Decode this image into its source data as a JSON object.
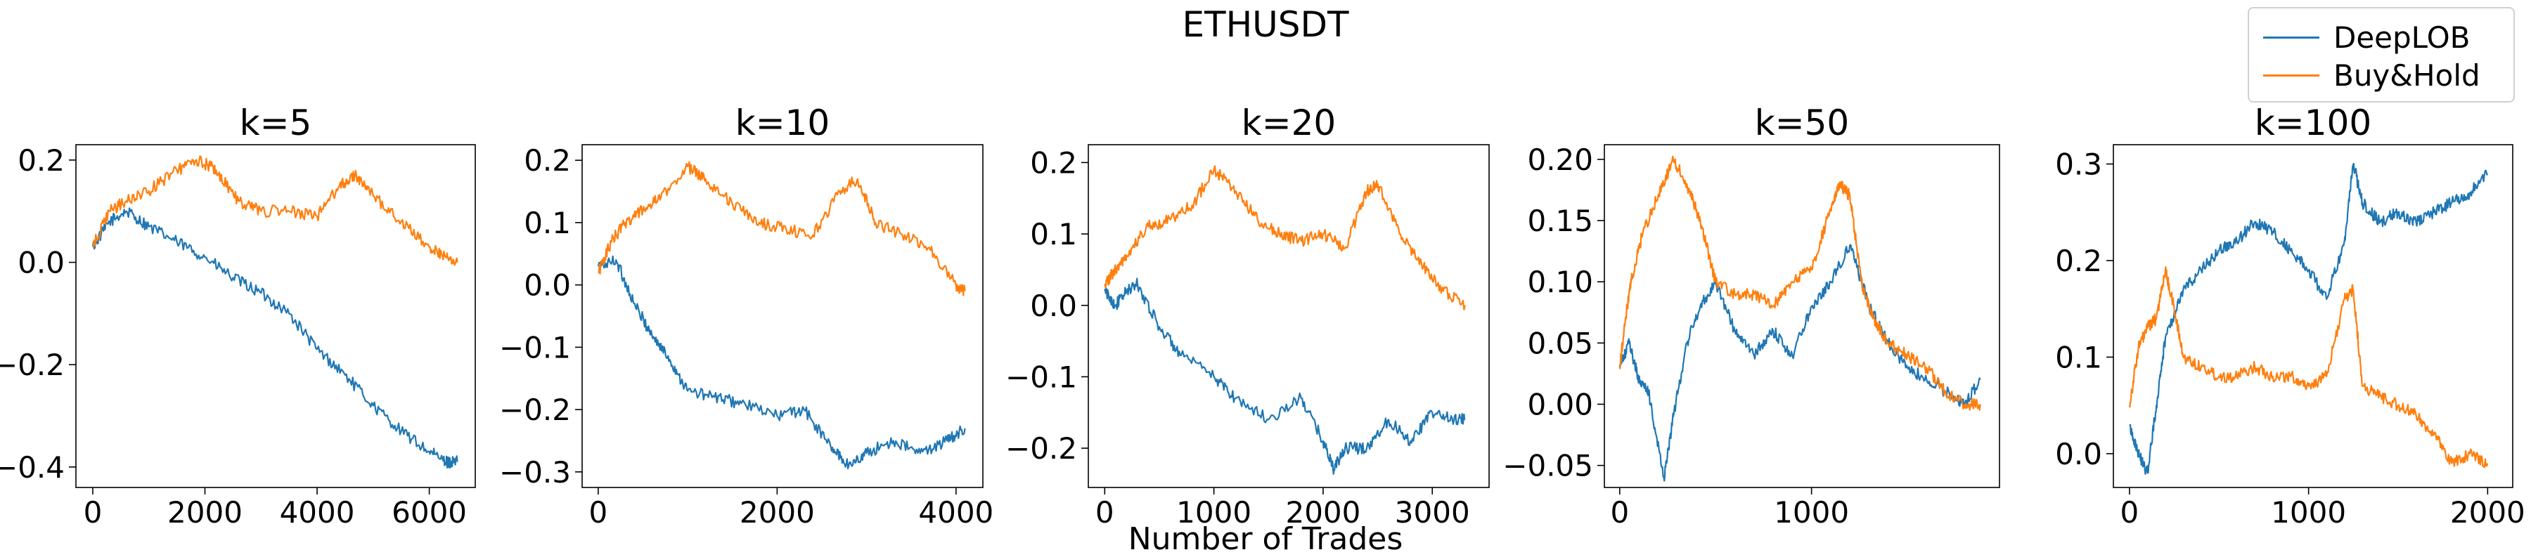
{
  "figure": {
    "title": "ETHUSDT",
    "xlabel": "Number of Trades"
  },
  "legend": [
    {
      "name": "DeepLOB",
      "color": "#1f77b4"
    },
    {
      "name": "Buy&Hold",
      "color": "#ff7f0e"
    }
  ],
  "chart_data": [
    {
      "type": "line",
      "title": "k=5",
      "xlim": [
        -300,
        6820
      ],
      "ylim": [
        -0.44,
        0.23
      ],
      "xticks": [
        0,
        2000,
        4000,
        6000
      ],
      "xtick_labels": [
        "0",
        "2000",
        "4000",
        "6000"
      ],
      "yticks": [
        -0.4,
        -0.2,
        0.0,
        0.2
      ],
      "ytick_labels": [
        "−0.4",
        "−0.2",
        "0.0",
        "0.2"
      ],
      "series": [
        {
          "name": "DeepLOB",
          "color": "#1f77b4",
          "x": [
            0,
            300,
            600,
            1000,
            1500,
            2000,
            2500,
            3000,
            3500,
            4000,
            4500,
            5000,
            5500,
            6000,
            6300,
            6500
          ],
          "y": [
            0.03,
            0.08,
            0.1,
            0.07,
            0.04,
            0.01,
            -0.03,
            -0.06,
            -0.1,
            -0.17,
            -0.22,
            -0.28,
            -0.33,
            -0.37,
            -0.39,
            -0.39
          ]
        },
        {
          "name": "Buy&Hold",
          "color": "#ff7f0e",
          "x": [
            0,
            300,
            600,
            1000,
            1500,
            1900,
            2200,
            2600,
            3000,
            3500,
            4000,
            4400,
            4700,
            5000,
            5500,
            6000,
            6300,
            6500
          ],
          "y": [
            0.03,
            0.1,
            0.12,
            0.14,
            0.18,
            0.2,
            0.18,
            0.12,
            0.1,
            0.1,
            0.09,
            0.15,
            0.17,
            0.13,
            0.08,
            0.03,
            0.01,
            0.0
          ]
        }
      ]
    },
    {
      "type": "line",
      "title": "k=10",
      "xlim": [
        -180,
        4300
      ],
      "ylim": [
        -0.325,
        0.225
      ],
      "xticks": [
        0,
        2000,
        4000
      ],
      "xtick_labels": [
        "0",
        "2000",
        "4000"
      ],
      "yticks": [
        -0.3,
        -0.2,
        -0.1,
        0.0,
        0.1,
        0.2
      ],
      "ytick_labels": [
        "−0.3",
        "−0.2",
        "−0.1",
        "0.0",
        "0.1",
        "0.2"
      ],
      "series": [
        {
          "name": "DeepLOB",
          "color": "#1f77b4",
          "x": [
            0,
            200,
            400,
            600,
            800,
            1000,
            1300,
            1600,
            2000,
            2300,
            2600,
            2800,
            3000,
            3300,
            3600,
            3900,
            4100
          ],
          "y": [
            0.03,
            0.04,
            -0.03,
            -0.08,
            -0.12,
            -0.17,
            -0.18,
            -0.19,
            -0.21,
            -0.2,
            -0.26,
            -0.29,
            -0.27,
            -0.25,
            -0.27,
            -0.25,
            -0.23
          ]
        },
        {
          "name": "Buy&Hold",
          "color": "#ff7f0e",
          "x": [
            0,
            150,
            300,
            500,
            700,
            1000,
            1200,
            1500,
            1800,
            2100,
            2400,
            2700,
            2900,
            3100,
            3400,
            3700,
            4000,
            4100
          ],
          "y": [
            0.02,
            0.07,
            0.1,
            0.12,
            0.14,
            0.19,
            0.17,
            0.13,
            0.1,
            0.09,
            0.08,
            0.15,
            0.17,
            0.1,
            0.08,
            0.06,
            0.0,
            -0.01
          ]
        }
      ]
    },
    {
      "type": "line",
      "title": "k=20",
      "xlim": [
        -150,
        3520
      ],
      "ylim": [
        -0.255,
        0.225
      ],
      "xticks": [
        0,
        1000,
        2000,
        3000
      ],
      "xtick_labels": [
        "0",
        "1000",
        "2000",
        "3000"
      ],
      "yticks": [
        -0.2,
        -0.1,
        0.0,
        0.1,
        0.2
      ],
      "ytick_labels": [
        "−0.2",
        "−0.1",
        "0.0",
        "0.1",
        "0.2"
      ],
      "series": [
        {
          "name": "DeepLOB",
          "color": "#1f77b4",
          "x": [
            0,
            100,
            200,
            300,
            500,
            700,
            1000,
            1200,
            1500,
            1800,
            2000,
            2100,
            2200,
            2400,
            2600,
            2800,
            3000,
            3200,
            3300
          ],
          "y": [
            0.02,
            0.0,
            0.02,
            0.03,
            -0.03,
            -0.07,
            -0.1,
            -0.13,
            -0.16,
            -0.13,
            -0.19,
            -0.23,
            -0.2,
            -0.2,
            -0.16,
            -0.19,
            -0.15,
            -0.16,
            -0.16
          ]
        },
        {
          "name": "Buy&Hold",
          "color": "#ff7f0e",
          "x": [
            0,
            100,
            200,
            400,
            600,
            800,
            1000,
            1200,
            1400,
            1600,
            1800,
            2000,
            2200,
            2400,
            2500,
            2700,
            2900,
            3100,
            3300
          ],
          "y": [
            0.03,
            0.05,
            0.07,
            0.11,
            0.12,
            0.14,
            0.19,
            0.16,
            0.12,
            0.1,
            0.09,
            0.1,
            0.08,
            0.16,
            0.17,
            0.1,
            0.06,
            0.02,
            0.0
          ]
        }
      ]
    },
    {
      "type": "line",
      "title": "k=50",
      "xlim": [
        -80,
        1980
      ],
      "ylim": [
        -0.068,
        0.212
      ],
      "xticks": [
        0,
        1000
      ],
      "xtick_labels": [
        "0",
        "1000"
      ],
      "yticks": [
        -0.05,
        0.0,
        0.05,
        0.1,
        0.15,
        0.2
      ],
      "ytick_labels": [
        "−0.05",
        "0.00",
        "0.05",
        "0.10",
        "0.15",
        "0.20"
      ],
      "series": [
        {
          "name": "DeepLOB",
          "color": "#1f77b4",
          "x": [
            0,
            50,
            100,
            150,
            230,
            280,
            350,
            420,
            500,
            600,
            700,
            800,
            900,
            1000,
            1100,
            1200,
            1300,
            1400,
            1500,
            1600,
            1700,
            1800,
            1880
          ],
          "y": [
            0.03,
            0.05,
            0.02,
            0.01,
            -0.06,
            -0.01,
            0.05,
            0.08,
            0.1,
            0.06,
            0.04,
            0.06,
            0.04,
            0.08,
            0.1,
            0.13,
            0.08,
            0.05,
            0.03,
            0.02,
            0.01,
            0.0,
            0.02
          ]
        },
        {
          "name": "Buy&Hold",
          "color": "#ff7f0e",
          "x": [
            0,
            30,
            60,
            120,
            200,
            280,
            350,
            420,
            500,
            600,
            700,
            800,
            900,
            1000,
            1100,
            1150,
            1200,
            1260,
            1320,
            1400,
            1500,
            1600,
            1700,
            1800,
            1880
          ],
          "y": [
            0.03,
            0.07,
            0.1,
            0.14,
            0.17,
            0.2,
            0.18,
            0.15,
            0.1,
            0.09,
            0.09,
            0.08,
            0.1,
            0.11,
            0.16,
            0.18,
            0.17,
            0.1,
            0.07,
            0.05,
            0.04,
            0.03,
            0.01,
            0.0,
            0.0
          ]
        }
      ]
    },
    {
      "type": "line",
      "title": "k=100",
      "xlim": [
        -90,
        2140
      ],
      "ylim": [
        -0.035,
        0.32
      ],
      "xticks": [
        0,
        1000,
        2000
      ],
      "xtick_labels": [
        "0",
        "1000",
        "2000"
      ],
      "yticks": [
        0.0,
        0.1,
        0.2,
        0.3
      ],
      "ytick_labels": [
        "0.0",
        "0.1",
        "0.2",
        "0.3"
      ],
      "series": [
        {
          "name": "DeepLOB",
          "color": "#1f77b4",
          "x": [
            0,
            50,
            100,
            150,
            200,
            300,
            400,
            500,
            600,
            700,
            800,
            900,
            1000,
            1100,
            1200,
            1250,
            1300,
            1400,
            1500,
            1600,
            1700,
            1800,
            1900,
            2000
          ],
          "y": [
            0.03,
            0.0,
            -0.02,
            0.05,
            0.12,
            0.17,
            0.19,
            0.21,
            0.22,
            0.24,
            0.23,
            0.21,
            0.19,
            0.16,
            0.22,
            0.3,
            0.26,
            0.24,
            0.25,
            0.24,
            0.25,
            0.26,
            0.27,
            0.29
          ]
        },
        {
          "name": "Buy&Hold",
          "color": "#ff7f0e",
          "x": [
            0,
            50,
            100,
            150,
            200,
            250,
            300,
            400,
            500,
            600,
            700,
            800,
            900,
            1000,
            1100,
            1200,
            1250,
            1300,
            1400,
            1500,
            1600,
            1700,
            1800,
            1900,
            2000
          ],
          "y": [
            0.05,
            0.11,
            0.13,
            0.14,
            0.19,
            0.15,
            0.1,
            0.09,
            0.08,
            0.08,
            0.09,
            0.08,
            0.08,
            0.07,
            0.08,
            0.16,
            0.17,
            0.07,
            0.06,
            0.05,
            0.04,
            0.02,
            -0.01,
            0.0,
            -0.01
          ]
        }
      ]
    }
  ]
}
